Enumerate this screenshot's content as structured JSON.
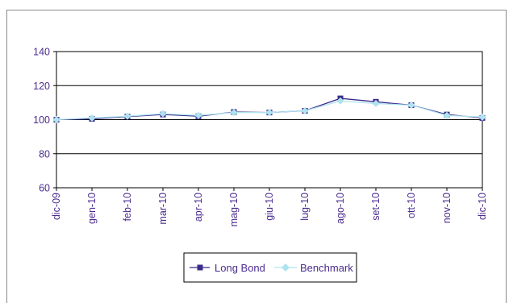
{
  "chart_data": {
    "type": "line",
    "title": "",
    "xlabel": "",
    "ylabel": "",
    "categories": [
      "dic-09",
      "gen-10",
      "feb-10",
      "mar-10",
      "apr-10",
      "mag-10",
      "giu-10",
      "lug-10",
      "ago-10",
      "set-10",
      "ott-10",
      "nov-10",
      "dic-10"
    ],
    "y_ticks": [
      "60",
      "80",
      "100",
      "120",
      "140"
    ],
    "ylim": [
      60,
      140
    ],
    "grid": true,
    "legend_position": "bottom",
    "series": [
      {
        "name": "Long Bond",
        "color": "#3b2a8c",
        "marker": "square",
        "values": [
          100,
          100.5,
          101.8,
          103,
          102,
          104.5,
          104.2,
          105.2,
          112.5,
          110.5,
          108.5,
          103,
          101
        ]
      },
      {
        "name": "Benchmark",
        "color": "#aee3f0",
        "marker": "diamond",
        "values": [
          100,
          101,
          102,
          103.5,
          102.5,
          104.2,
          104.2,
          105.2,
          111,
          109.5,
          108.5,
          102.5,
          101.5
        ]
      }
    ]
  }
}
